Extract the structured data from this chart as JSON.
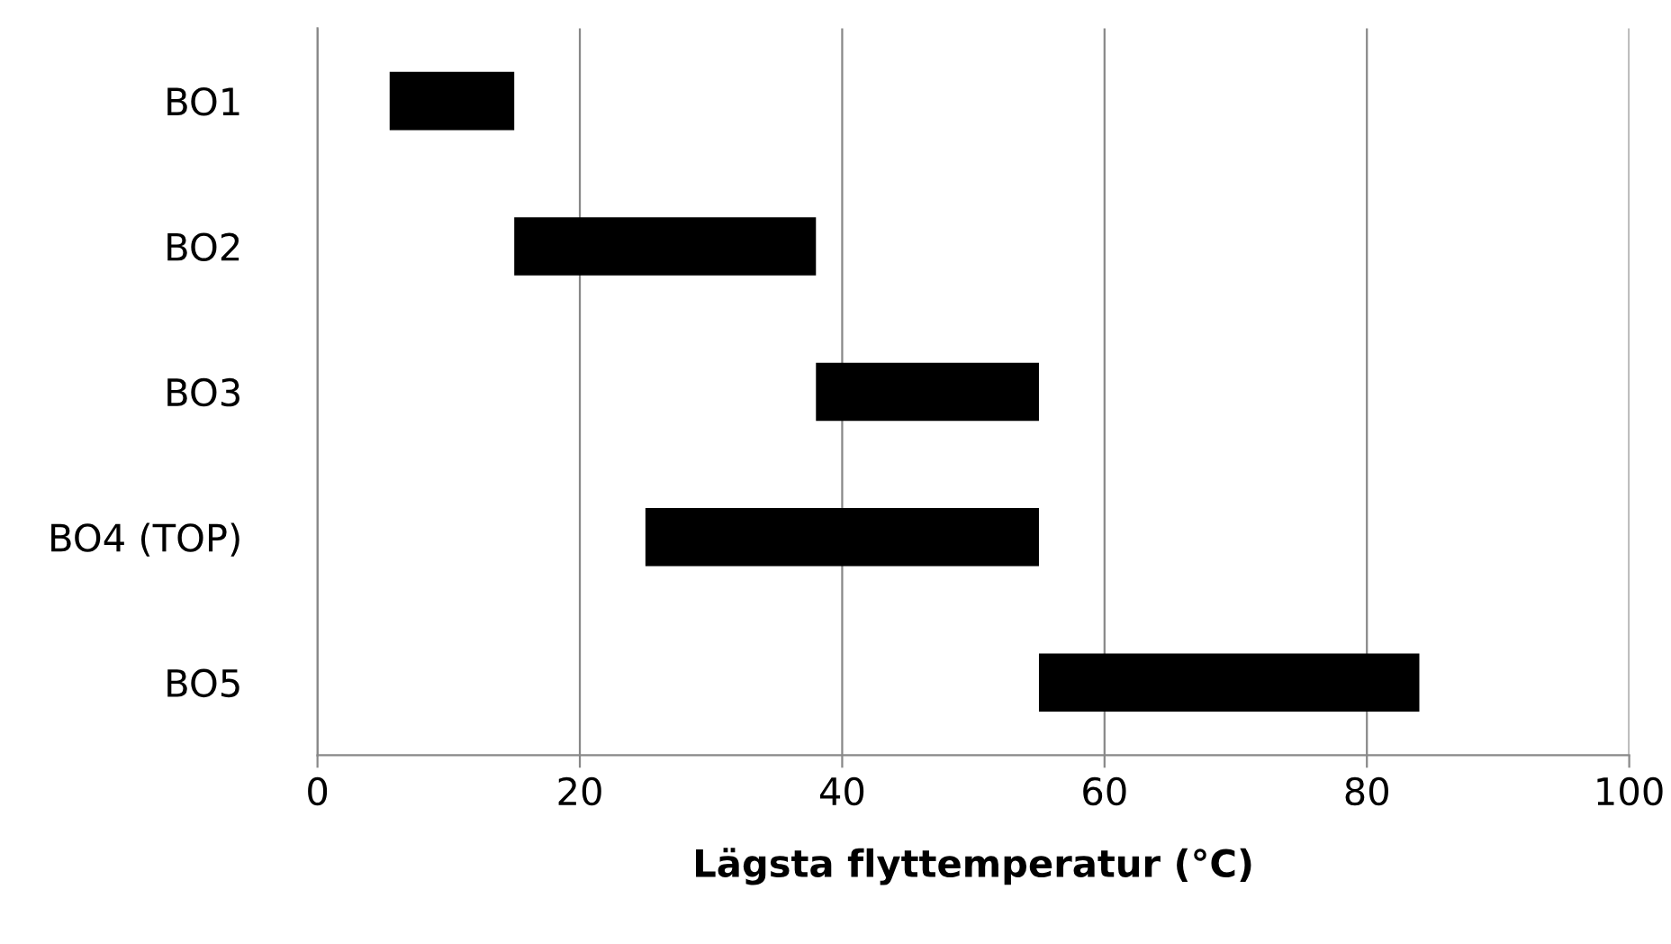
{
  "chart_data": {
    "type": "bar",
    "orientation": "horizontal",
    "xlabel": "Lägsta flyttemperatur (°C)",
    "categories": [
      "BO1",
      "BO2",
      "BO3",
      "BO4 (TOP)",
      "BO5"
    ],
    "base": [
      5.5,
      15,
      38,
      25,
      55
    ],
    "values": [
      9.5,
      23,
      17,
      30,
      29
    ],
    "colors": [
      "#000000",
      "#000000",
      "#000000",
      "#000000",
      "#000000"
    ],
    "xlim": [
      0,
      100
    ],
    "xticks": [
      0,
      20,
      40,
      60,
      80,
      100
    ],
    "grid": "x"
  }
}
